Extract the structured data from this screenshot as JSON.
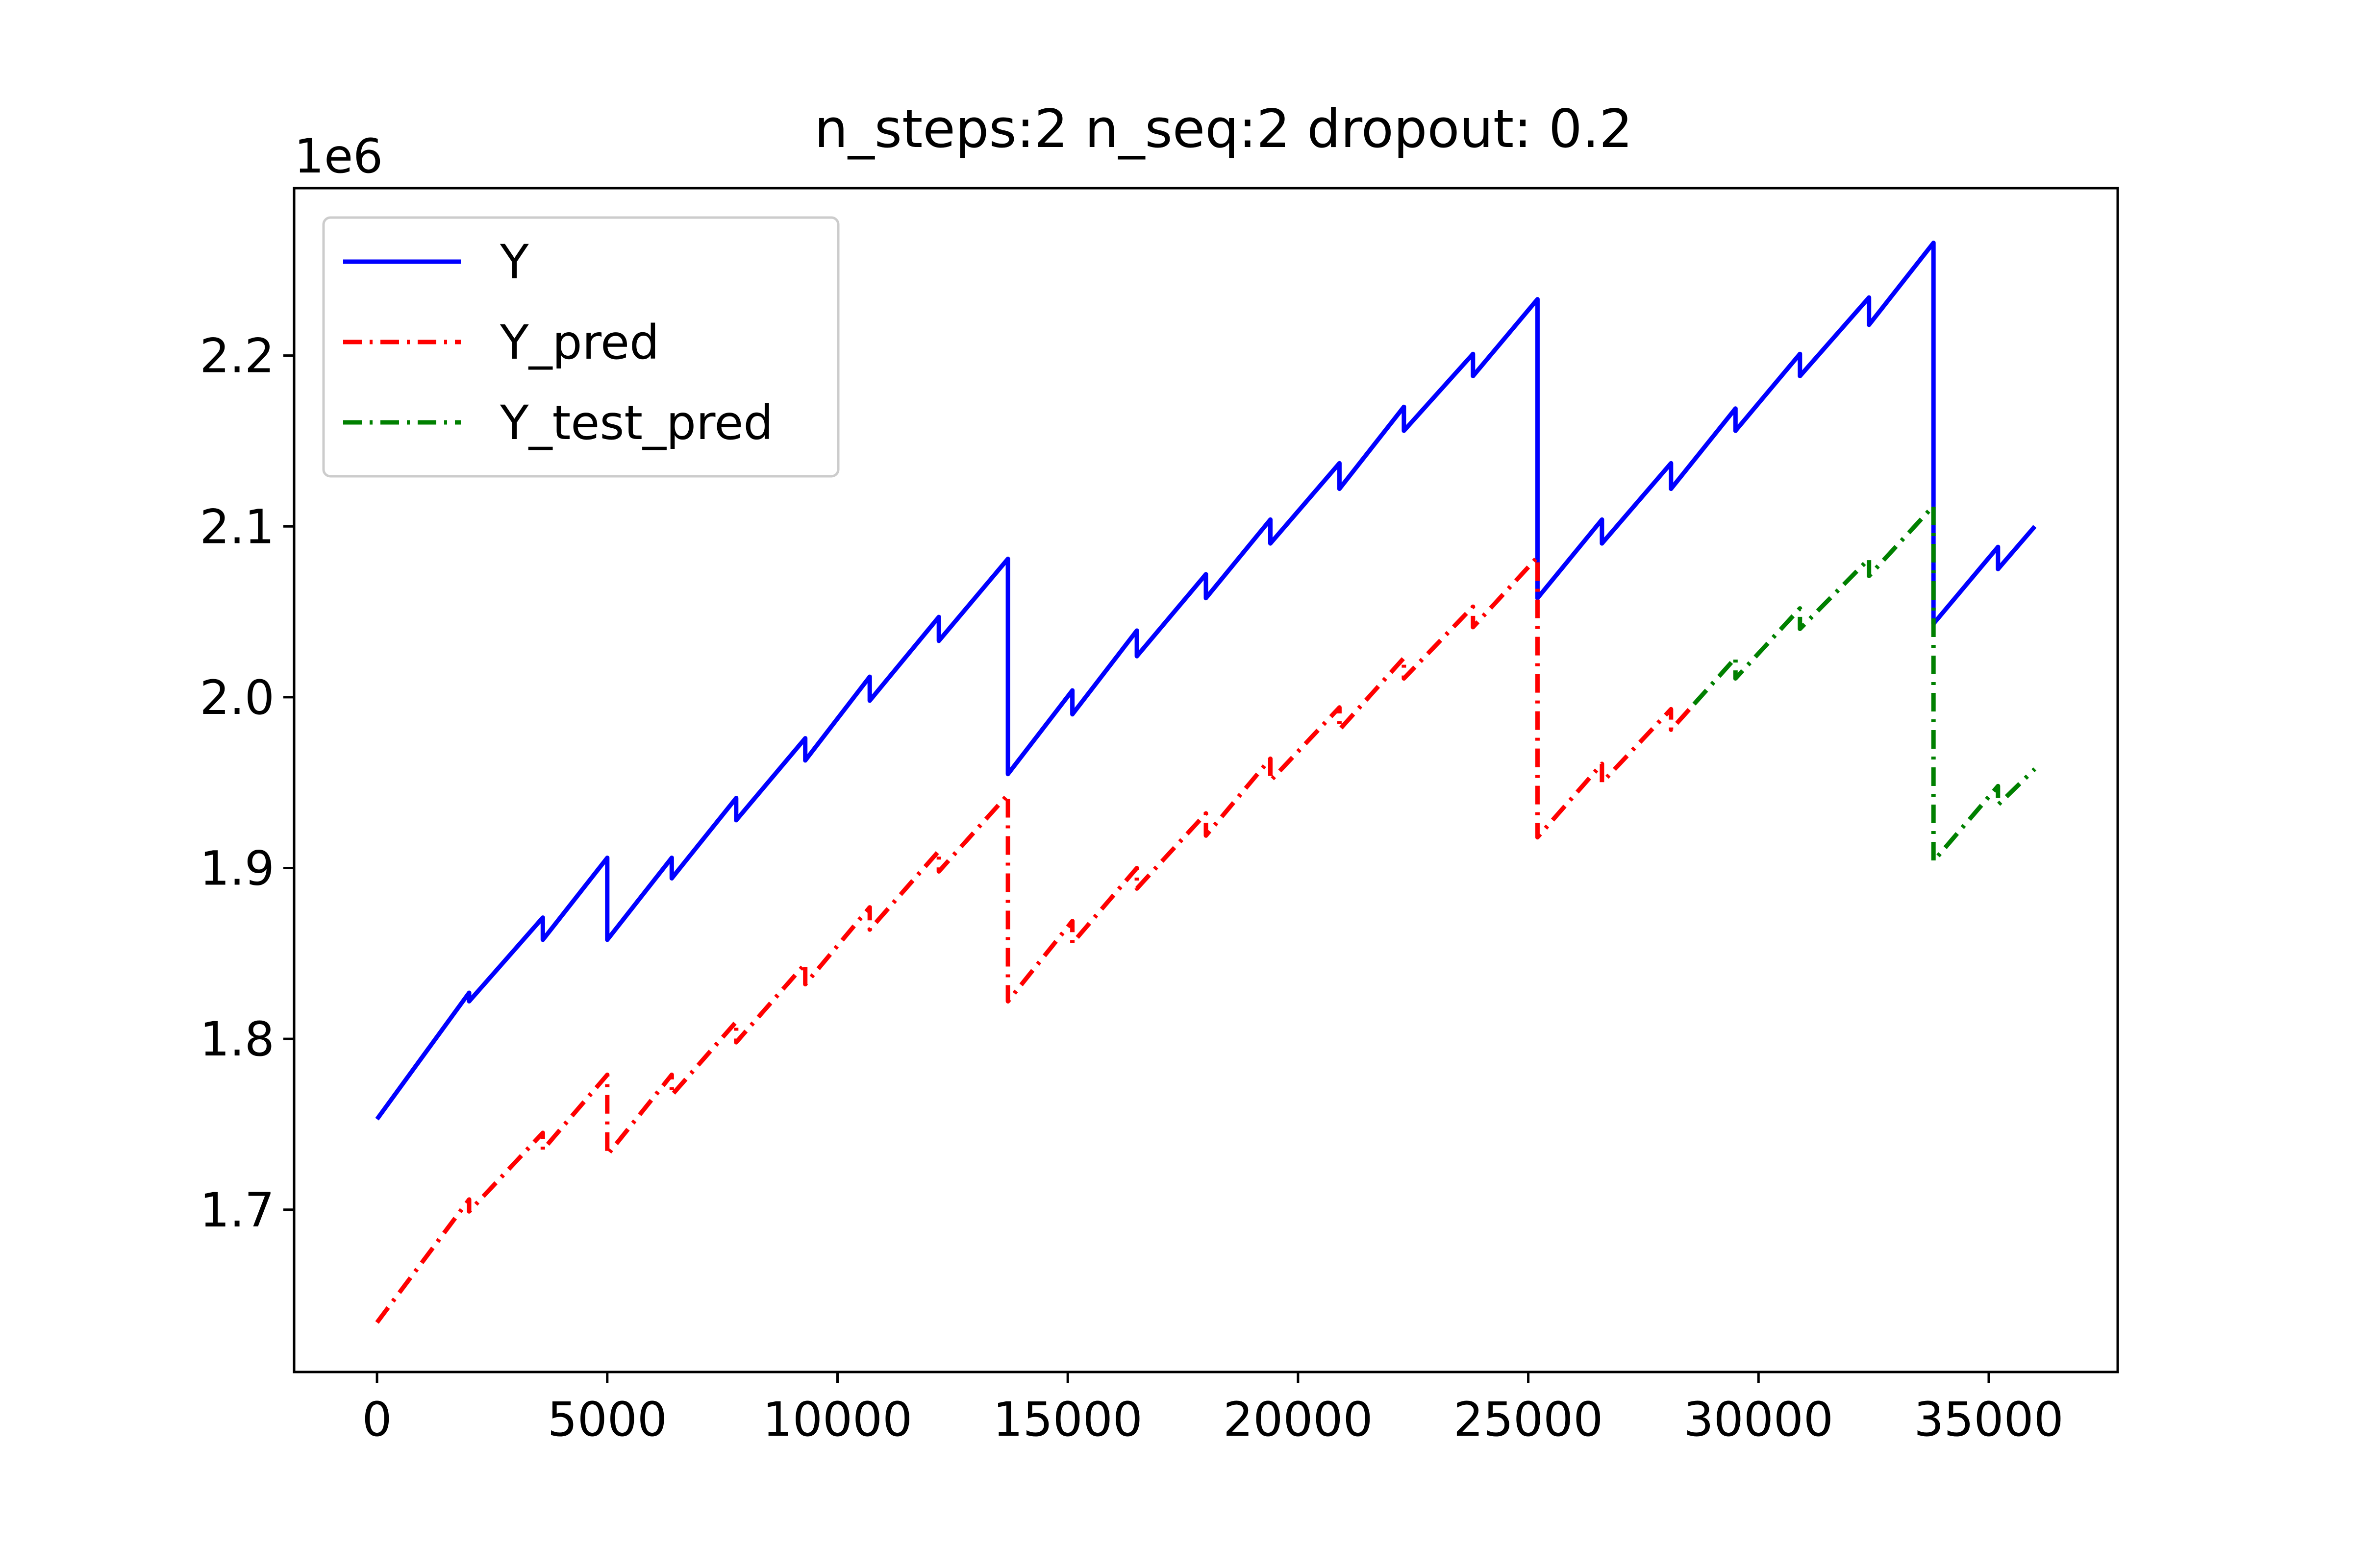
{
  "chart_data": {
    "type": "line",
    "title": "n_steps:2 n_seq:2 dropout: 0.2",
    "xlabel": "",
    "ylabel": "",
    "y_offset_label": "1e6",
    "xlim": [
      -1800,
      37800
    ],
    "ylim": [
      1.605,
      2.298
    ],
    "y_scale_factor": 1000000,
    "x_ticks": [
      0,
      5000,
      10000,
      15000,
      20000,
      25000,
      30000,
      35000
    ],
    "x_tick_labels": [
      "0",
      "5000",
      "10000",
      "15000",
      "20000",
      "25000",
      "30000",
      "35000"
    ],
    "y_ticks": [
      1.7,
      1.8,
      1.9,
      2.0,
      2.1,
      2.2
    ],
    "y_tick_labels": [
      "1.7",
      "1.8",
      "1.9",
      "2.0",
      "2.1",
      "2.2"
    ],
    "grid": false,
    "legend_position": "top-left",
    "series": [
      {
        "name": "Y",
        "color": "#0000ff",
        "style": "solid",
        "points": [
          [
            0,
            1.753
          ],
          [
            2000,
            1.827
          ],
          [
            2000,
            1.822
          ],
          [
            3600,
            1.871
          ],
          [
            3600,
            1.858
          ],
          [
            5000,
            1.906
          ],
          [
            5000,
            1.858
          ],
          [
            6400,
            1.906
          ],
          [
            6400,
            1.894
          ],
          [
            7800,
            1.941
          ],
          [
            7800,
            1.928
          ],
          [
            9300,
            1.976
          ],
          [
            9300,
            1.963
          ],
          [
            10700,
            2.012
          ],
          [
            10700,
            1.998
          ],
          [
            12200,
            2.047
          ],
          [
            12200,
            2.033
          ],
          [
            13700,
            2.081
          ],
          [
            13700,
            1.955
          ],
          [
            15100,
            2.004
          ],
          [
            15100,
            1.99
          ],
          [
            16500,
            2.039
          ],
          [
            16500,
            2.024
          ],
          [
            18000,
            2.072
          ],
          [
            18000,
            2.058
          ],
          [
            19400,
            2.104
          ],
          [
            19400,
            2.09
          ],
          [
            20900,
            2.137
          ],
          [
            20900,
            2.122
          ],
          [
            22300,
            2.17
          ],
          [
            22300,
            2.156
          ],
          [
            23800,
            2.201
          ],
          [
            23800,
            2.188
          ],
          [
            25200,
            2.233
          ],
          [
            25200,
            2.058
          ],
          [
            26600,
            2.104
          ],
          [
            26600,
            2.09
          ],
          [
            28100,
            2.137
          ],
          [
            28100,
            2.122
          ],
          [
            29500,
            2.169
          ],
          [
            29500,
            2.156
          ],
          [
            30900,
            2.201
          ],
          [
            30900,
            2.188
          ],
          [
            32400,
            2.234
          ],
          [
            32400,
            2.218
          ],
          [
            33800,
            2.266
          ],
          [
            33800,
            2.043
          ],
          [
            35200,
            2.088
          ],
          [
            35200,
            2.075
          ],
          [
            36000,
            2.1
          ]
        ]
      },
      {
        "name": "Y_pred",
        "color": "#ff0000",
        "style": "dashdot",
        "points": [
          [
            0,
            1.634
          ],
          [
            2000,
            1.706
          ],
          [
            2000,
            1.699
          ],
          [
            3600,
            1.745
          ],
          [
            3600,
            1.735
          ],
          [
            5000,
            1.779
          ],
          [
            5000,
            1.732
          ],
          [
            6400,
            1.779
          ],
          [
            6400,
            1.767
          ],
          [
            7800,
            1.81
          ],
          [
            7800,
            1.798
          ],
          [
            9300,
            1.844
          ],
          [
            9300,
            1.832
          ],
          [
            10700,
            1.877
          ],
          [
            10700,
            1.864
          ],
          [
            12200,
            1.91
          ],
          [
            12200,
            1.898
          ],
          [
            13700,
            1.943
          ],
          [
            13700,
            1.822
          ],
          [
            15100,
            1.869
          ],
          [
            15100,
            1.856
          ],
          [
            16500,
            1.9
          ],
          [
            16500,
            1.888
          ],
          [
            18000,
            1.932
          ],
          [
            18000,
            1.919
          ],
          [
            19400,
            1.964
          ],
          [
            19400,
            1.951
          ],
          [
            20900,
            1.994
          ],
          [
            20900,
            1.981
          ],
          [
            22300,
            2.023
          ],
          [
            22300,
            2.011
          ],
          [
            23800,
            2.053
          ],
          [
            23800,
            2.041
          ],
          [
            25200,
            2.082
          ],
          [
            25200,
            1.918
          ],
          [
            26600,
            1.961
          ],
          [
            26600,
            1.95
          ],
          [
            28100,
            1.993
          ],
          [
            28100,
            1.981
          ],
          [
            28600,
            1.996
          ]
        ]
      },
      {
        "name": "Y_test_pred",
        "color": "#008000",
        "style": "dashdot",
        "points": [
          [
            28600,
            1.996
          ],
          [
            29500,
            2.023
          ],
          [
            29500,
            2.011
          ],
          [
            30900,
            2.052
          ],
          [
            30900,
            2.04
          ],
          [
            32400,
            2.081
          ],
          [
            32400,
            2.071
          ],
          [
            33800,
            2.112
          ],
          [
            33800,
            1.904
          ],
          [
            35200,
            1.948
          ],
          [
            35200,
            1.937
          ],
          [
            36000,
            1.958
          ]
        ]
      }
    ]
  }
}
